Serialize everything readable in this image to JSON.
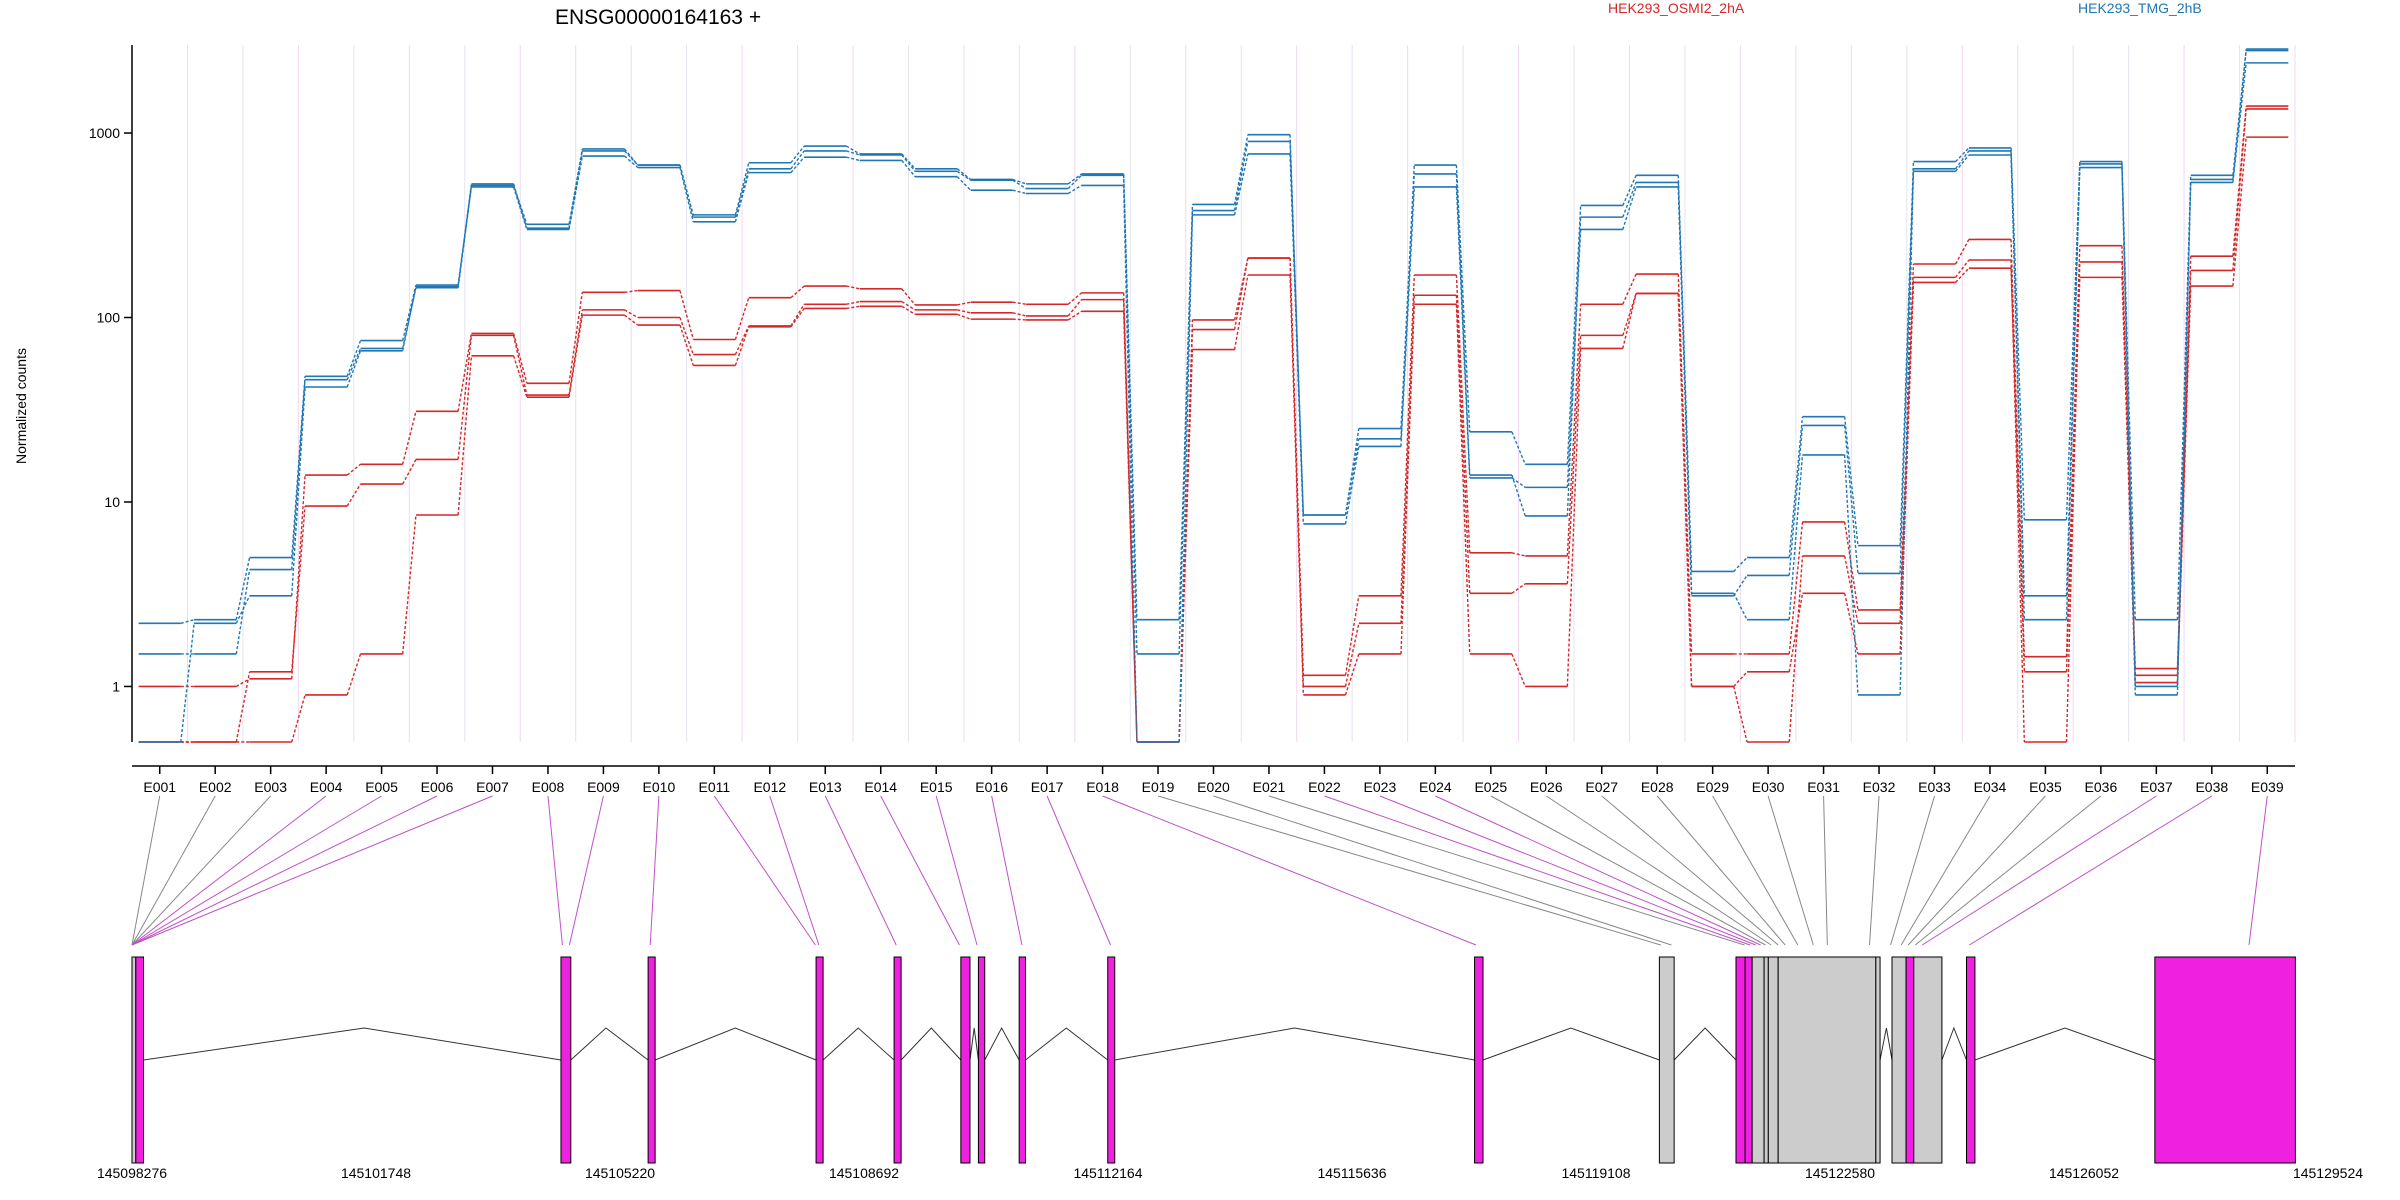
{
  "chart_data": {
    "type": "line",
    "title": "ENSG00000164163 +",
    "ylabel": "Normalized counts",
    "xlabel": "",
    "yscale": "log",
    "ylim": [
      0.5,
      3000
    ],
    "yticks": [
      "1",
      "10",
      "100",
      "1000"
    ],
    "ytick_values": [
      1,
      10,
      100,
      1000
    ],
    "categories": [
      "E001",
      "E002",
      "E003",
      "E004",
      "E005",
      "E006",
      "E007",
      "E008",
      "E009",
      "E010",
      "E011",
      "E012",
      "E013",
      "E014",
      "E015",
      "E016",
      "E017",
      "E018",
      "E019",
      "E020",
      "E021",
      "E022",
      "E023",
      "E024",
      "E025",
      "E026",
      "E027",
      "E028",
      "E029",
      "E030",
      "E031",
      "E032",
      "E033",
      "E034",
      "E035",
      "E036",
      "E037",
      "E038",
      "E039"
    ],
    "legend": [
      {
        "label": "HEK293_OSMI2_2hA",
        "color": "#d62728"
      },
      {
        "label": "HEK293_TMG_2hB",
        "color": "#1f77b4"
      }
    ],
    "series": [
      {
        "group": 0,
        "values": [
          1.0,
          1.0,
          1.1,
          14,
          16,
          31,
          82,
          44,
          137,
          140,
          76,
          128,
          148,
          143,
          117,
          121,
          118,
          136,
          0.5,
          97,
          210,
          1.15,
          3.1,
          170,
          5.3,
          5.1,
          118,
          172,
          1.5,
          1.5,
          7.8,
          2.6,
          195,
          265,
          1.45,
          245,
          1.25,
          215,
          1400
        ]
      },
      {
        "group": 0,
        "values": [
          0.5,
          0.5,
          0.5,
          0.9,
          1.5,
          8.5,
          62,
          37,
          103,
          91,
          55,
          89,
          112,
          115,
          104,
          98,
          97,
          108,
          0.5,
          67,
          170,
          0.9,
          1.5,
          118,
          1.5,
          1.0,
          68,
          135,
          1.0,
          1.2,
          3.2,
          1.5,
          155,
          185,
          1.2,
          165,
          1.05,
          148,
          950
        ]
      },
      {
        "group": 0,
        "values": [
          0.5,
          0.5,
          1.2,
          9.5,
          12.5,
          17,
          80,
          38,
          110,
          100,
          63,
          90,
          118,
          122,
          110,
          106,
          102,
          125,
          0.5,
          86,
          210,
          1.0,
          2.2,
          132,
          3.2,
          3.6,
          80,
          135,
          1.0,
          0.5,
          5.1,
          2.2,
          165,
          205,
          0.5,
          200,
          1.15,
          180,
          1350
        ]
      },
      {
        "group": 1,
        "values": [
          2.2,
          2.3,
          5.0,
          48,
          75,
          150,
          520,
          320,
          820,
          670,
          360,
          690,
          850,
          770,
          640,
          560,
          530,
          600,
          2.3,
          410,
          980,
          8.5,
          25,
          670,
          24,
          16,
          405,
          590,
          4.2,
          5.0,
          29,
          5.8,
          700,
          830,
          8.0,
          700,
          2.3,
          590,
          2850
        ]
      },
      {
        "group": 1,
        "values": [
          1.5,
          1.5,
          4.3,
          46,
          68,
          145,
          510,
          300,
          750,
          650,
          330,
          610,
          740,
          710,
          580,
          490,
          470,
          520,
          0.5,
          360,
          770,
          7.6,
          20,
          510,
          13.5,
          12,
          300,
          510,
          3.1,
          4.0,
          26,
          4.1,
          620,
          760,
          3.1,
          680,
          1.0,
          540,
          2400
        ]
      },
      {
        "group": 1,
        "values": [
          0.5,
          2.2,
          3.1,
          42,
          66,
          147,
          530,
          305,
          800,
          670,
          350,
          640,
          800,
          760,
          620,
          555,
          500,
          590,
          1.5,
          380,
          900,
          8.5,
          22,
          600,
          14,
          8.4,
          350,
          540,
          3.2,
          2.3,
          18,
          0.9,
          640,
          800,
          2.3,
          650,
          0.9,
          560,
          2800
        ]
      }
    ]
  },
  "gene_model": {
    "coordinate_labels": [
      "145098276",
      "145101748",
      "145105220",
      "145108692",
      "145112164",
      "145115636",
      "145119108",
      "145122580",
      "145126052",
      "145129524"
    ],
    "coordinate_start": 145098276,
    "coordinate_end": 145129524,
    "exon_segments": [
      {
        "start": 145098276,
        "end": 145098330,
        "highlight": false
      },
      {
        "start": 145098330,
        "end": 145098440,
        "highlight": true
      },
      {
        "start": 145104380,
        "end": 145104520,
        "highlight": true
      },
      {
        "start": 145105620,
        "end": 145105720,
        "highlight": true
      },
      {
        "start": 145108010,
        "end": 145108110,
        "highlight": true
      },
      {
        "start": 145109120,
        "end": 145109220,
        "highlight": true
      },
      {
        "start": 145110070,
        "end": 145110200,
        "highlight": true
      },
      {
        "start": 145110320,
        "end": 145110410,
        "highlight": true
      },
      {
        "start": 145110900,
        "end": 145110990,
        "highlight": true
      },
      {
        "start": 145112160,
        "end": 145112260,
        "highlight": true
      },
      {
        "start": 145117380,
        "end": 145117500,
        "highlight": true
      },
      {
        "start": 145120010,
        "end": 145120220,
        "highlight": false
      },
      {
        "start": 145121100,
        "end": 145121230,
        "highlight": true
      },
      {
        "start": 145121230,
        "end": 145121330,
        "highlight": true
      },
      {
        "start": 145121330,
        "end": 145121500,
        "highlight": false
      },
      {
        "start": 145121500,
        "end": 145121560,
        "highlight": false
      },
      {
        "start": 145121560,
        "end": 145121700,
        "highlight": false
      },
      {
        "start": 145121700,
        "end": 145123090,
        "highlight": false
      },
      {
        "start": 145123090,
        "end": 145123150,
        "highlight": false
      },
      {
        "start": 145123320,
        "end": 145123520,
        "highlight": false
      },
      {
        "start": 145123520,
        "end": 145123630,
        "highlight": true
      },
      {
        "start": 145123630,
        "end": 145124030,
        "highlight": false
      },
      {
        "start": 145124380,
        "end": 145124500,
        "highlight": true
      },
      {
        "start": 145127060,
        "end": 145129060,
        "highlight": true
      }
    ],
    "introns": [
      {
        "start": 145098440,
        "end": 145104380,
        "peak": 145101580
      },
      {
        "start": 145104520,
        "end": 145105620,
        "peak": 145105020
      },
      {
        "start": 145105720,
        "end": 145108010,
        "peak": 145106860
      },
      {
        "start": 145108110,
        "end": 145109120,
        "peak": 145108610
      },
      {
        "start": 145109220,
        "end": 145110070,
        "peak": 145109650
      },
      {
        "start": 145110200,
        "end": 145110320,
        "peak": 145110260
      },
      {
        "start": 145110410,
        "end": 145110900,
        "peak": 145110650
      },
      {
        "start": 145110990,
        "end": 145112160,
        "peak": 145111570
      },
      {
        "start": 145112260,
        "end": 145117380,
        "peak": 145114820
      },
      {
        "start": 145117500,
        "end": 145120010,
        "peak": 145118750
      },
      {
        "start": 145120220,
        "end": 145121100,
        "peak": 145120660
      },
      {
        "start": 145123150,
        "end": 145123320,
        "peak": 145123240
      },
      {
        "start": 145124030,
        "end": 145124380,
        "peak": 145124200
      },
      {
        "start": 145124500,
        "end": 145127060,
        "peak": 145125780
      }
    ],
    "bin_targets": [
      145098276,
      145098276,
      145098276,
      145098276,
      145098276,
      145098276,
      145098276,
      145104400,
      145104500,
      145105650,
      145108000,
      145108050,
      145109150,
      145110050,
      145110300,
      145110940,
      145112200,
      145117400,
      145120030,
      145120180,
      145121220,
      145121300,
      145121380,
      145121450,
      145121520,
      145121600,
      145121700,
      145121800,
      145121980,
      145122200,
      145122400,
      145123000,
      145123300,
      145123450,
      145123550,
      145123650,
      145123750,
      145124420,
      145128400
    ],
    "bin_highlight": [
      false,
      false,
      false,
      true,
      true,
      true,
      true,
      true,
      true,
      true,
      true,
      true,
      true,
      true,
      true,
      true,
      true,
      true,
      false,
      false,
      false,
      true,
      true,
      true,
      false,
      false,
      false,
      false,
      false,
      false,
      false,
      false,
      false,
      false,
      false,
      false,
      true,
      true,
      true
    ]
  }
}
